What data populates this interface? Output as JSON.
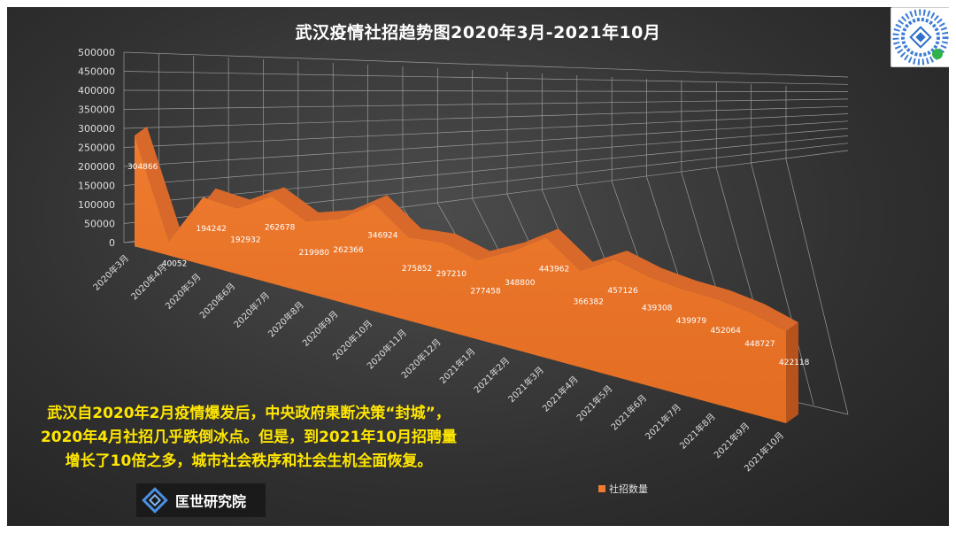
{
  "colors": {
    "area": "#ee7b2f",
    "area_dark": "#b6521c",
    "area_top": "#d9692a",
    "grid": "#9a9a9a",
    "caption": "#ffe600"
  },
  "chart_data": {
    "type": "area",
    "title": "武汉疫情社招趋势图2020年3月-2021年10月",
    "categories": [
      "2020年3月",
      "2020年4月",
      "2020年5月",
      "2020年6月",
      "2020年7月",
      "2020年8月",
      "2020年9月",
      "2020年10月",
      "2020年11月",
      "2020年12月",
      "2021年1月",
      "2021年2月",
      "2021年3月",
      "2021年4月",
      "2021年5月",
      "2021年6月",
      "2021年7月",
      "2021年8月",
      "2021年9月",
      "2021年10月"
    ],
    "series": [
      {
        "name": "社招数量",
        "values": [
          304866,
          40052,
          194242,
          192932,
          262678,
          219980,
          262366,
          346924,
          275852,
          297210,
          277458,
          348800,
          443962,
          366382,
          457126,
          439308,
          439979,
          452064,
          448727,
          422118
        ]
      }
    ],
    "data_labels": [
      "304866",
      "40052",
      "194242",
      "192932",
      "262678",
      "219980",
      "262366",
      "346924",
      "275852",
      "297210",
      "277458",
      "348800",
      "443962",
      "366382",
      "457126",
      "439308",
      "439979",
      "452064",
      "448727",
      "422118"
    ],
    "y_ticks": [
      "0",
      "50000",
      "100000",
      "150000",
      "200000",
      "250000",
      "300000",
      "350000",
      "400000",
      "450000",
      "500000"
    ],
    "ylim": [
      0,
      500000
    ],
    "grid": true,
    "legend_position": "bottom",
    "legend_label": "社招数量"
  },
  "caption_lines": [
    "武汉自2020年2月疫情爆发后，中央政府果断决策“封城”，",
    "2020年4月社招几乎跌倒冰点。但是，到2021年10月招聘量",
    "增长了10倍之多，城市社会秩序和社会生机全面恢复。"
  ],
  "logo": {
    "name": "匡世研究院",
    "icon": "diamond-logo-icon"
  },
  "qr_icon": "qr-code-icon"
}
